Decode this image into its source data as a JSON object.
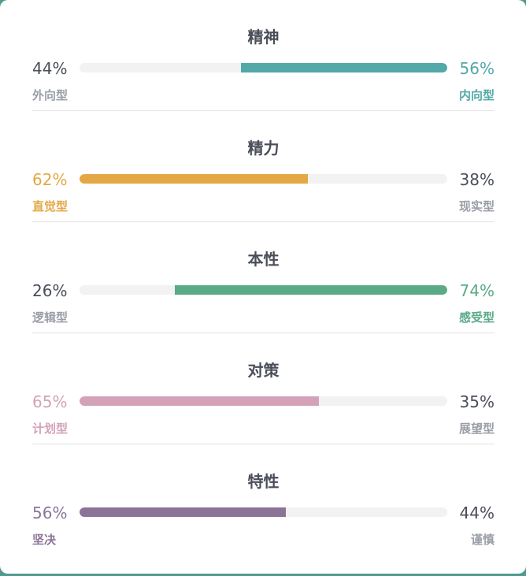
{
  "traits": [
    {
      "title": "精神",
      "left": {
        "percent_text": "44%",
        "label": "外向型",
        "value": 44
      },
      "right": {
        "percent_text": "56%",
        "label": "内向型",
        "value": 56
      },
      "dominant": "right",
      "color": "#52a9a8"
    },
    {
      "title": "精力",
      "left": {
        "percent_text": "62%",
        "label": "直觉型",
        "value": 62
      },
      "right": {
        "percent_text": "38%",
        "label": "现实型",
        "value": 38
      },
      "dominant": "left",
      "color": "#e3a844"
    },
    {
      "title": "本性",
      "left": {
        "percent_text": "26%",
        "label": "逻辑型",
        "value": 26
      },
      "right": {
        "percent_text": "74%",
        "label": "感受型",
        "value": 74
      },
      "dominant": "right",
      "color": "#5aaa88"
    },
    {
      "title": "对策",
      "left": {
        "percent_text": "65%",
        "label": "计划型",
        "value": 65
      },
      "right": {
        "percent_text": "35%",
        "label": "展望型",
        "value": 35
      },
      "dominant": "left",
      "color": "#d3a2b8"
    },
    {
      "title": "特性",
      "left": {
        "percent_text": "56%",
        "label": "坚决",
        "value": 56
      },
      "right": {
        "percent_text": "44%",
        "label": "谨慎",
        "value": 44
      },
      "dominant": "left",
      "color": "#8c7398"
    }
  ],
  "colors": {
    "neutral_text": "#4a4e59",
    "neutral_label": "#9a9ea8",
    "track": "#f2f2f2",
    "divider": "#e3e3e3"
  }
}
